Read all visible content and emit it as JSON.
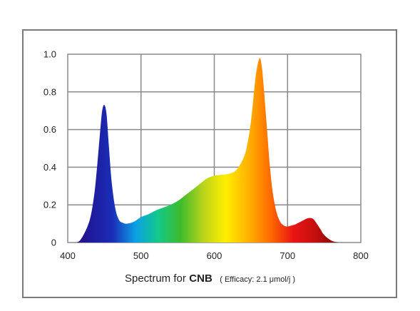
{
  "chart_data": {
    "type": "area",
    "title_prefix": "Spectrum for",
    "title_name": "CNB",
    "subtitle": "( Efficacy: 2.1 μmol/j )",
    "xlim": [
      400,
      800
    ],
    "ylim": [
      0,
      1.0
    ],
    "grid": true,
    "xticks": [
      "400",
      "500",
      "600",
      "700",
      "800"
    ],
    "yticks": [
      "0",
      "0.2",
      "0.4",
      "0.6",
      "0.8",
      "1.0"
    ],
    "series": [
      {
        "x": [
          400,
          412,
          420,
          430,
          436,
          440,
          444,
          447,
          450,
          453,
          456,
          460,
          465,
          470,
          475,
          480,
          490,
          500,
          510,
          520,
          530,
          540,
          550,
          560,
          570,
          580,
          590,
          600,
          610,
          620,
          630,
          640,
          645,
          650,
          655,
          658,
          662,
          665,
          668,
          672,
          676,
          680,
          685,
          690,
          695,
          700,
          705,
          710,
          715,
          720,
          725,
          730,
          735,
          740,
          745,
          750,
          760,
          770,
          775
        ],
        "y": [
          0,
          0,
          0.03,
          0.12,
          0.25,
          0.4,
          0.58,
          0.7,
          0.73,
          0.68,
          0.52,
          0.32,
          0.18,
          0.12,
          0.105,
          0.1,
          0.11,
          0.135,
          0.15,
          0.17,
          0.185,
          0.2,
          0.22,
          0.25,
          0.28,
          0.31,
          0.34,
          0.355,
          0.36,
          0.365,
          0.385,
          0.45,
          0.52,
          0.64,
          0.83,
          0.92,
          0.98,
          0.93,
          0.8,
          0.6,
          0.4,
          0.26,
          0.16,
          0.11,
          0.09,
          0.085,
          0.09,
          0.095,
          0.105,
          0.115,
          0.125,
          0.13,
          0.125,
          0.1,
          0.07,
          0.04,
          0.01,
          0,
          0
        ]
      }
    ],
    "gradient_colors": [
      "#2a0a7a",
      "#1f1a9a",
      "#1a2eb8",
      "#0aa0e6",
      "#12c98a",
      "#3dbb2e",
      "#b9d31b",
      "#ffee00",
      "#ffb300",
      "#ff6a00",
      "#ea1515",
      "#c40e0e",
      "#7a0a0a",
      "#1a0000"
    ]
  }
}
